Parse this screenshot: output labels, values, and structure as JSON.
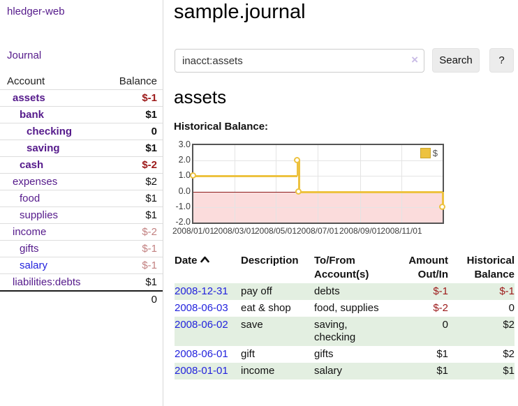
{
  "app": {
    "title": "hledger-web",
    "nav_journal": "Journal"
  },
  "sidebar": {
    "headers": {
      "account": "Account",
      "balance": "Balance"
    },
    "accounts": [
      {
        "label": "assets",
        "indent": 1,
        "bold": true,
        "link": "purple",
        "balance": "$-1",
        "balance_style": "neg-strong"
      },
      {
        "label": "bank",
        "indent": 2,
        "bold": true,
        "link": "purple",
        "balance": "$1",
        "balance_style": "normal"
      },
      {
        "label": "checking",
        "indent": 3,
        "bold": true,
        "link": "purple",
        "balance": "0",
        "balance_style": "normal"
      },
      {
        "label": "saving",
        "indent": 3,
        "bold": true,
        "link": "purple",
        "balance": "$1",
        "balance_style": "normal"
      },
      {
        "label": "cash",
        "indent": 2,
        "bold": true,
        "link": "purple",
        "balance": "$-2",
        "balance_style": "neg-strong"
      },
      {
        "label": "expenses",
        "indent": 1,
        "bold": false,
        "link": "purple",
        "balance": "$2",
        "balance_style": "normal"
      },
      {
        "label": "food",
        "indent": 2,
        "bold": false,
        "link": "purple",
        "balance": "$1",
        "balance_style": "normal"
      },
      {
        "label": "supplies",
        "indent": 2,
        "bold": false,
        "link": "purple",
        "balance": "$1",
        "balance_style": "normal"
      },
      {
        "label": "income",
        "indent": 1,
        "bold": false,
        "link": "purple",
        "balance": "$-2",
        "balance_style": "neg-muted"
      },
      {
        "label": "gifts",
        "indent": 2,
        "bold": false,
        "link": "purple",
        "balance": "$-1",
        "balance_style": "neg-muted"
      },
      {
        "label": "salary",
        "indent": 2,
        "bold": false,
        "link": "blue",
        "balance": "$-1",
        "balance_style": "neg-muted"
      },
      {
        "label": "liabilities:debts",
        "indent": 1,
        "bold": false,
        "link": "purple",
        "balance": "$1",
        "balance_style": "normal"
      }
    ],
    "total": "0"
  },
  "header": {
    "title": "sample.journal"
  },
  "search": {
    "value": "inacct:assets",
    "clear_icon": "×",
    "button_label": "Search",
    "help_label": "?"
  },
  "account_page": {
    "heading": "assets",
    "chart_label": "Historical Balance:"
  },
  "chart_data": {
    "type": "line",
    "step": true,
    "title": "Historical Balance",
    "series": [
      {
        "name": "$",
        "color": "#edc240",
        "points": [
          {
            "date": "2008-01-01",
            "value": 1
          },
          {
            "date": "2008-06-01",
            "value": 2
          },
          {
            "date": "2008-06-03",
            "value": 0
          },
          {
            "date": "2008-12-31",
            "value": -1
          }
        ]
      }
    ],
    "x_range": [
      "2008-01-01",
      "2008-12-31"
    ],
    "ylim": [
      -2,
      3
    ],
    "y_ticks": [
      "3.0",
      "2.0",
      "1.0",
      "0.0",
      "-1.0",
      "-2.0"
    ],
    "x_ticks": [
      "2008/01/01",
      "2008/03/01",
      "2008/05/01",
      "2008/07/01",
      "2008/09/01",
      "2008/11/01"
    ],
    "legend_position": "top-right",
    "grid": true,
    "zero_line_color": "#8b1a1a",
    "negative_fill": "#fbdcdc",
    "border_color": "#545454"
  },
  "table": {
    "headers": [
      {
        "lines": [
          "Date"
        ],
        "align": "left",
        "sorted": "asc"
      },
      {
        "lines": [
          "Description"
        ],
        "align": "left"
      },
      {
        "lines": [
          "To/From",
          "Account(s)"
        ],
        "align": "left"
      },
      {
        "lines": [
          "Amount",
          "Out/In"
        ],
        "align": "right"
      },
      {
        "lines": [
          "Historical",
          "Balance"
        ],
        "align": "right"
      }
    ],
    "rows": [
      {
        "date": "2008-12-31",
        "description": "pay off",
        "accounts": "debts",
        "amount": "$-1",
        "amount_negative": true,
        "balance": "$-1",
        "balance_negative": true,
        "shaded": true
      },
      {
        "date": "2008-06-03",
        "description": "eat & shop",
        "accounts": "food, supplies",
        "amount": "$-2",
        "amount_negative": true,
        "balance": "0",
        "balance_negative": false,
        "shaded": false
      },
      {
        "date": "2008-06-02",
        "description": "save",
        "accounts": "saving, checking",
        "amount": "0",
        "amount_negative": false,
        "balance": "$2",
        "balance_negative": false,
        "shaded": true
      },
      {
        "date": "2008-06-01",
        "description": "gift",
        "accounts": "gifts",
        "amount": "$1",
        "amount_negative": false,
        "balance": "$2",
        "balance_negative": false,
        "shaded": false
      },
      {
        "date": "2008-01-01",
        "description": "income",
        "accounts": "salary",
        "amount": "$1",
        "amount_negative": false,
        "balance": "$1",
        "balance_negative": false,
        "shaded": true
      }
    ]
  },
  "colors": {
    "link_purple": "#551a8b",
    "link_blue": "#2222dd",
    "negative_strong": "#9c1919",
    "negative_muted": "#c28181",
    "row_green": "#e3efe1",
    "series_gold": "#edc240"
  }
}
